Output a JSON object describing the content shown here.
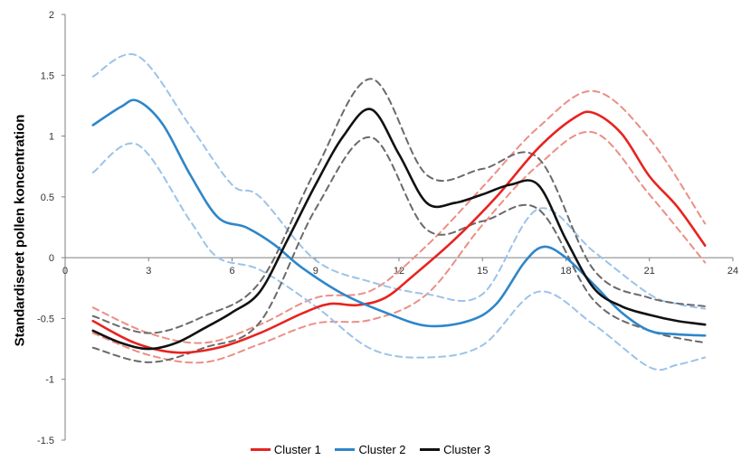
{
  "colors": {
    "red": "#e8231f",
    "red_light": "#eb8f86",
    "blue": "#2e86c9",
    "blue_light": "#9cc3e9",
    "black": "#111111",
    "gray": "#6a6a6a"
  },
  "chart_data": {
    "type": "line",
    "ylabel": "Standardiseret  pollen koncentration",
    "xlim": [
      0,
      24
    ],
    "ylim": [
      -1.5,
      2
    ],
    "x_ticks": [
      "0",
      "3",
      "6",
      "9",
      "12",
      "15",
      "18",
      "21",
      "24"
    ],
    "y_ticks": [
      "2",
      "1.5",
      "1",
      "0.5",
      "0",
      "-0.5",
      "-1",
      "-1.5"
    ],
    "grid": false,
    "legend_position": "bottom",
    "series": [
      {
        "name": "Cluster 1",
        "color": "#e8231f",
        "style": "solid",
        "x": [
          1,
          2.5,
          4,
          5.5,
          7,
          8.5,
          9.5,
          10.5,
          11.5,
          12.5,
          14,
          15.5,
          17,
          18.3,
          19,
          20,
          21,
          22,
          23
        ],
        "y": [
          -0.52,
          -0.7,
          -0.78,
          -0.74,
          -0.62,
          -0.46,
          -0.38,
          -0.39,
          -0.33,
          -0.15,
          0.15,
          0.5,
          0.9,
          1.15,
          1.19,
          1.02,
          0.67,
          0.42,
          0.1
        ]
      },
      {
        "name": "",
        "color": "#eb8f86",
        "style": "dashed",
        "x": [
          1,
          3,
          5,
          7,
          9,
          11,
          13,
          15,
          17,
          19,
          21,
          23
        ],
        "y": [
          -0.41,
          -0.62,
          -0.7,
          -0.55,
          -0.33,
          -0.27,
          0.1,
          0.58,
          1.07,
          1.37,
          0.98,
          0.28
        ]
      },
      {
        "name": "",
        "color": "#eb8f86",
        "style": "dashed",
        "x": [
          1,
          3,
          5,
          7,
          9,
          11,
          13,
          15,
          17,
          19,
          21,
          23
        ],
        "y": [
          -0.62,
          -0.8,
          -0.86,
          -0.71,
          -0.54,
          -0.51,
          -0.3,
          0.27,
          0.76,
          1.03,
          0.52,
          -0.04
        ]
      },
      {
        "name": "Cluster 2",
        "color": "#2e86c9",
        "style": "solid",
        "x": [
          1,
          2,
          2.6,
          3.5,
          4.5,
          5.5,
          6.5,
          7.5,
          8.5,
          10,
          11.5,
          13,
          14.5,
          15.5,
          16.5,
          17.2,
          18,
          19,
          20,
          21,
          22,
          23
        ],
        "y": [
          1.09,
          1.24,
          1.29,
          1.1,
          0.68,
          0.33,
          0.25,
          0.11,
          -0.08,
          -0.3,
          -0.45,
          -0.56,
          -0.52,
          -0.38,
          -0.04,
          0.09,
          0.0,
          -0.22,
          -0.45,
          -0.6,
          -0.63,
          -0.64
        ]
      },
      {
        "name": "",
        "color": "#9cc3e9",
        "style": "dashed",
        "x": [
          1,
          2.6,
          4.5,
          6,
          7,
          9,
          11,
          13,
          15,
          17,
          19,
          21,
          22,
          23
        ],
        "y": [
          1.49,
          1.66,
          1.08,
          0.6,
          0.5,
          -0.02,
          -0.2,
          -0.3,
          -0.3,
          0.4,
          0.05,
          -0.3,
          -0.38,
          -0.42
        ]
      },
      {
        "name": "",
        "color": "#9cc3e9",
        "style": "dashed",
        "x": [
          1,
          2.6,
          4.5,
          5.5,
          7,
          9,
          11,
          13,
          15,
          17,
          19,
          21,
          22,
          23
        ],
        "y": [
          0.7,
          0.93,
          0.3,
          0.0,
          -0.1,
          -0.4,
          -0.75,
          -0.82,
          -0.72,
          -0.28,
          -0.55,
          -0.9,
          -0.88,
          -0.82
        ]
      },
      {
        "name": "Cluster 3",
        "color": "#111111",
        "style": "solid",
        "x": [
          1,
          2,
          3,
          4,
          5,
          6,
          7,
          8,
          9,
          10,
          11,
          12,
          13,
          14,
          15,
          16,
          17,
          18,
          19,
          20,
          21,
          22,
          23
        ],
        "y": [
          -0.6,
          -0.7,
          -0.75,
          -0.7,
          -0.58,
          -0.45,
          -0.28,
          0.15,
          0.6,
          1.0,
          1.22,
          0.85,
          0.45,
          0.45,
          0.52,
          0.6,
          0.6,
          0.15,
          -0.25,
          -0.4,
          -0.47,
          -0.52,
          -0.55
        ]
      },
      {
        "name": "",
        "color": "#6a6a6a",
        "style": "dashed",
        "x": [
          1,
          3,
          5,
          7,
          9,
          11,
          13,
          15,
          17,
          19,
          21,
          23
        ],
        "y": [
          -0.48,
          -0.62,
          -0.48,
          -0.2,
          0.72,
          1.47,
          0.68,
          0.73,
          0.82,
          -0.1,
          -0.33,
          -0.4
        ]
      },
      {
        "name": "",
        "color": "#6a6a6a",
        "style": "dashed",
        "x": [
          1,
          3,
          5,
          7,
          9,
          11,
          13,
          15,
          17,
          19,
          21,
          23
        ],
        "y": [
          -0.74,
          -0.86,
          -0.74,
          -0.53,
          0.4,
          0.99,
          0.23,
          0.3,
          0.4,
          -0.35,
          -0.6,
          -0.7
        ]
      }
    ]
  },
  "legend": [
    {
      "label": "Cluster 1",
      "color": "#e8231f"
    },
    {
      "label": "Cluster 2",
      "color": "#2e86c9"
    },
    {
      "label": "Cluster 3",
      "color": "#111111"
    }
  ]
}
